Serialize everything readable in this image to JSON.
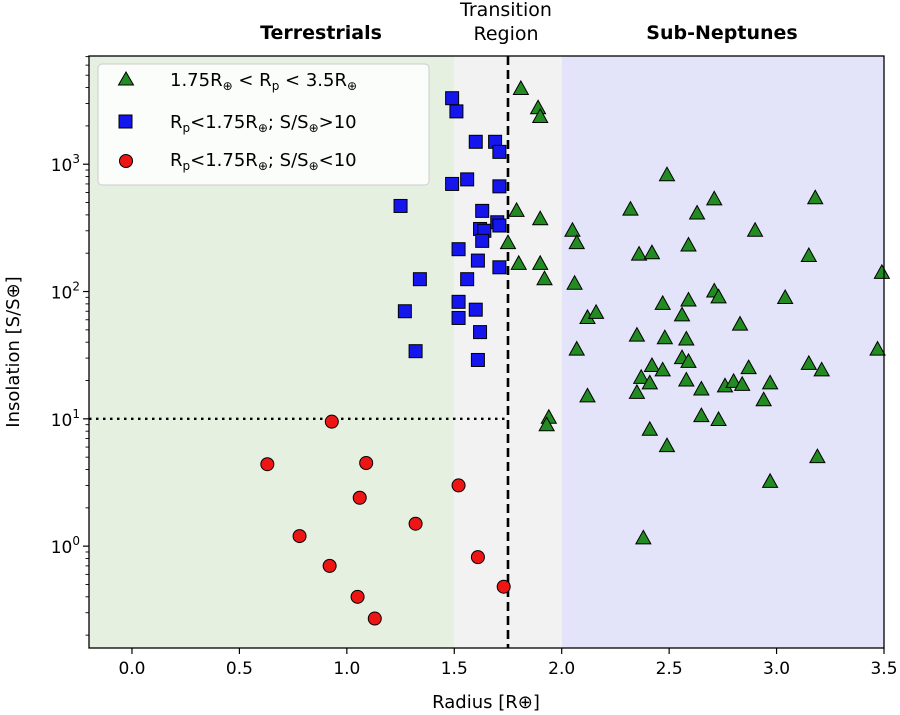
{
  "chart_data": {
    "type": "scatter",
    "title": "",
    "xlabel": "Radius [R⊕]",
    "ylabel": "Insolation [S/S⊕]",
    "xlim": [
      -0.2,
      3.5
    ],
    "ylim_log10": [
      -0.8,
      3.85
    ],
    "y_scale": "log",
    "x_ticks": [
      0.0,
      0.5,
      1.0,
      1.5,
      2.0,
      2.5,
      3.0,
      3.5
    ],
    "x_tick_labels": [
      "0.0",
      "0.5",
      "1.0",
      "1.5",
      "2.0",
      "2.5",
      "3.0",
      "3.5"
    ],
    "y_ticks": [
      1,
      10,
      100,
      1000
    ],
    "y_tick_labels": [
      {
        "base": "10",
        "exp": "0"
      },
      {
        "base": "10",
        "exp": "1"
      },
      {
        "base": "10",
        "exp": "2"
      },
      {
        "base": "10",
        "exp": "3"
      }
    ],
    "regions": [
      {
        "name": "Terrestrials",
        "x0": -0.2,
        "x1": 1.5,
        "color": "#e6f0e1"
      },
      {
        "name": "Transition Region",
        "x0": 1.5,
        "x1": 2.0,
        "color": "#f2f2f2"
      },
      {
        "name": "Sub-Neptunes",
        "x0": 2.0,
        "x1": 3.5,
        "color": "#e3e3fa"
      }
    ],
    "region_labels": {
      "terrestrials": "Terrestrials",
      "transition_line1": "Transition",
      "transition_line2": "Region",
      "subneptunes": "Sub-Neptunes"
    },
    "reference_lines": {
      "radius_cut": 1.75,
      "insolation_cut": 10
    },
    "legend": {
      "placement": "top-left",
      "entries": [
        {
          "marker": "triangle",
          "color": "#228b22",
          "text": "1.75R⊕ < Rp < 3.5R⊕"
        },
        {
          "marker": "square",
          "color": "#1515ee",
          "text": "Rp<1.75R⊕; S/S⊕>10"
        },
        {
          "marker": "circle",
          "color": "#ee1515",
          "text": "Rp<1.75R⊕; S/S⊕<10"
        }
      ]
    },
    "series": [
      {
        "marker": "triangle",
        "color": "#228b22",
        "points": [
          [
            1.81,
            3900
          ],
          [
            1.89,
            2750
          ],
          [
            1.9,
            2350
          ],
          [
            1.79,
            430
          ],
          [
            1.75,
            240
          ],
          [
            1.8,
            165
          ],
          [
            1.9,
            370
          ],
          [
            1.9,
            165
          ],
          [
            1.92,
            125
          ],
          [
            2.05,
            300
          ],
          [
            2.07,
            240
          ],
          [
            2.06,
            115
          ],
          [
            2.12,
            62
          ],
          [
            2.16,
            68
          ],
          [
            2.07,
            35
          ],
          [
            2.12,
            15
          ],
          [
            1.94,
            10.2
          ],
          [
            1.93,
            8.9
          ],
          [
            2.32,
            440
          ],
          [
            2.36,
            195
          ],
          [
            2.42,
            200
          ],
          [
            2.49,
            820
          ],
          [
            2.63,
            410
          ],
          [
            2.71,
            530
          ],
          [
            2.59,
            230
          ],
          [
            2.47,
            80
          ],
          [
            2.56,
            65
          ],
          [
            2.59,
            85
          ],
          [
            2.71,
            100
          ],
          [
            2.73,
            90
          ],
          [
            2.9,
            300
          ],
          [
            3.04,
            89
          ],
          [
            3.15,
            190
          ],
          [
            3.18,
            540
          ],
          [
            3.49,
            140
          ],
          [
            2.35,
            45
          ],
          [
            2.48,
            43
          ],
          [
            2.58,
            42
          ],
          [
            2.56,
            30
          ],
          [
            2.59,
            28
          ],
          [
            2.37,
            21
          ],
          [
            2.42,
            26
          ],
          [
            2.47,
            24
          ],
          [
            2.41,
            19
          ],
          [
            2.35,
            16
          ],
          [
            2.58,
            20
          ],
          [
            2.65,
            17
          ],
          [
            2.76,
            18
          ],
          [
            2.8,
            19.5
          ],
          [
            2.84,
            18.5
          ],
          [
            2.83,
            55
          ],
          [
            2.87,
            25
          ],
          [
            2.94,
            14
          ],
          [
            2.97,
            19
          ],
          [
            3.15,
            27
          ],
          [
            3.21,
            24
          ],
          [
            3.47,
            35
          ],
          [
            2.41,
            8.2
          ],
          [
            2.49,
            6.1
          ],
          [
            2.65,
            10.5
          ],
          [
            2.73,
            9.8
          ],
          [
            2.97,
            3.2
          ],
          [
            3.19,
            5.0
          ],
          [
            2.38,
            1.15
          ]
        ]
      },
      {
        "marker": "square",
        "color": "#1515ee",
        "points": [
          [
            1.49,
            3300
          ],
          [
            1.51,
            2600
          ],
          [
            1.6,
            1500
          ],
          [
            1.69,
            1500
          ],
          [
            1.71,
            1250
          ],
          [
            1.56,
            760
          ],
          [
            1.49,
            700
          ],
          [
            1.71,
            670
          ],
          [
            1.25,
            470
          ],
          [
            1.63,
            430
          ],
          [
            1.62,
            310
          ],
          [
            1.64,
            300
          ],
          [
            1.7,
            350
          ],
          [
            1.71,
            330
          ],
          [
            1.52,
            215
          ],
          [
            1.63,
            250
          ],
          [
            1.61,
            175
          ],
          [
            1.71,
            155
          ],
          [
            1.34,
            125
          ],
          [
            1.56,
            125
          ],
          [
            1.52,
            83
          ],
          [
            1.6,
            72
          ],
          [
            1.27,
            70
          ],
          [
            1.52,
            62
          ],
          [
            1.62,
            48
          ],
          [
            1.32,
            34
          ],
          [
            1.61,
            29
          ]
        ]
      },
      {
        "marker": "circle",
        "color": "#ee1515",
        "points": [
          [
            0.93,
            9.5
          ],
          [
            0.63,
            4.4
          ],
          [
            1.09,
            4.5
          ],
          [
            1.06,
            2.4
          ],
          [
            1.52,
            3.0
          ],
          [
            1.32,
            1.5
          ],
          [
            0.78,
            1.2
          ],
          [
            0.92,
            0.7
          ],
          [
            1.61,
            0.82
          ],
          [
            1.05,
            0.4
          ],
          [
            1.13,
            0.27
          ],
          [
            1.73,
            0.48
          ]
        ]
      }
    ]
  }
}
